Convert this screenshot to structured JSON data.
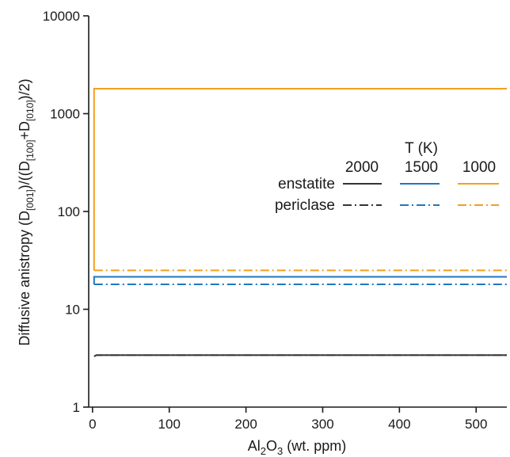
{
  "chart_data": {
    "type": "line",
    "xlabel": "Al2O3 (wt. ppm)",
    "xlabel_parts": {
      "main": "Al",
      "sub1": "2",
      "mid": "O",
      "sub2": "3",
      "rest": " (wt. ppm)"
    },
    "ylabel": "Diffusive anistropy (D[001])/((D[100]+D[010])/2)",
    "ylabel_parts": {
      "p1": "Diffusive anistropy (D",
      "s1": "[001]",
      "p2": ")/((D",
      "s2": "[100]",
      "p3": "+D",
      "s3": "[010]",
      "p4": ")/2)"
    },
    "xlim": [
      -5,
      540
    ],
    "ylim": [
      1,
      10000
    ],
    "yscale": "log",
    "x_ticks": [
      0,
      100,
      200,
      300,
      400,
      500
    ],
    "x_tick_labels": [
      "0",
      "100",
      "200",
      "300",
      "400",
      "500"
    ],
    "y_ticks": [
      1,
      10,
      100,
      1000,
      10000
    ],
    "y_tick_labels": [
      "1",
      "10",
      "100",
      "1000",
      "10000"
    ],
    "grid": false,
    "legend": {
      "title": "T (K)",
      "columns": [
        "2000",
        "1500",
        "1000"
      ],
      "rows": [
        "enstatite",
        "periclase"
      ],
      "placement": "right"
    },
    "series": [
      {
        "mineral": "enstatite",
        "temperature": "2000",
        "color": "#333333",
        "dash": "solid",
        "x": [
          5,
          540
        ],
        "y": [
          3.4,
          3.4
        ]
      },
      {
        "mineral": "periclase",
        "temperature": "2000",
        "color": "#333333",
        "dash": "dashdot",
        "x": [
          2,
          5,
          540
        ],
        "y": [
          3.3,
          3.4,
          3.4
        ]
      },
      {
        "mineral": "enstatite",
        "temperature": "1500",
        "color": "#1f77c0",
        "dash": "solid",
        "x": [
          2,
          2,
          540
        ],
        "y": [
          18,
          21.5,
          21.5
        ]
      },
      {
        "mineral": "periclase",
        "temperature": "1500",
        "color": "#1f77c0",
        "dash": "dashdot",
        "x": [
          2,
          540
        ],
        "y": [
          18,
          18
        ]
      },
      {
        "mineral": "enstatite",
        "temperature": "1000",
        "color": "#f2a01c",
        "dash": "solid",
        "x": [
          2,
          2,
          540
        ],
        "y": [
          25,
          1800,
          1800
        ]
      },
      {
        "mineral": "periclase",
        "temperature": "1000",
        "color": "#f2a01c",
        "dash": "dashdot",
        "x": [
          2,
          540
        ],
        "y": [
          25,
          25
        ]
      }
    ]
  }
}
